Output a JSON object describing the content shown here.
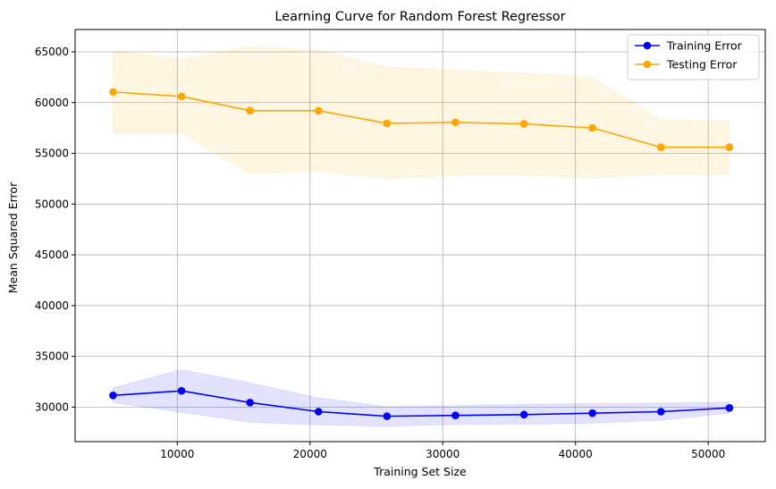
{
  "chart_data": {
    "type": "line",
    "title": "Learning Curve for Random Forest Regressor",
    "xlabel": "Training Set Size",
    "ylabel": "Mean Squared Error",
    "xlim": [
      2300,
      54300
    ],
    "ylim": [
      26600,
      67200
    ],
    "xticks": [
      10000,
      20000,
      30000,
      40000,
      50000
    ],
    "yticks": [
      30000,
      35000,
      40000,
      45000,
      50000,
      55000,
      60000,
      65000
    ],
    "grid": true,
    "legend_position": "top-right",
    "x": [
      5160,
      10320,
      15480,
      20640,
      25800,
      30960,
      36120,
      41280,
      46440,
      51600
    ],
    "series": [
      {
        "name": "Training Error",
        "color": "#0000ff",
        "band_color": "#0000ff",
        "values": [
          31150,
          31600,
          30450,
          29550,
          29100,
          29180,
          29260,
          29400,
          29550,
          29920
        ],
        "band_upper": [
          31900,
          33700,
          32400,
          30900,
          30050,
          30150,
          30300,
          30350,
          30400,
          30500
        ],
        "band_lower": [
          30450,
          29500,
          28500,
          28250,
          28100,
          28300,
          28300,
          28400,
          28700,
          29400
        ]
      },
      {
        "name": "Testing Error",
        "color": "#ffa500",
        "band_color": "#ffa500",
        "values": [
          61050,
          60600,
          59200,
          59200,
          57950,
          58050,
          57900,
          57500,
          55600,
          55600
        ],
        "band_upper": [
          65100,
          64300,
          65500,
          65200,
          63500,
          63200,
          62900,
          62500,
          58300,
          58200
        ],
        "band_lower": [
          56950,
          56950,
          52950,
          53250,
          52450,
          52850,
          52850,
          52550,
          52950,
          52950
        ]
      }
    ]
  }
}
